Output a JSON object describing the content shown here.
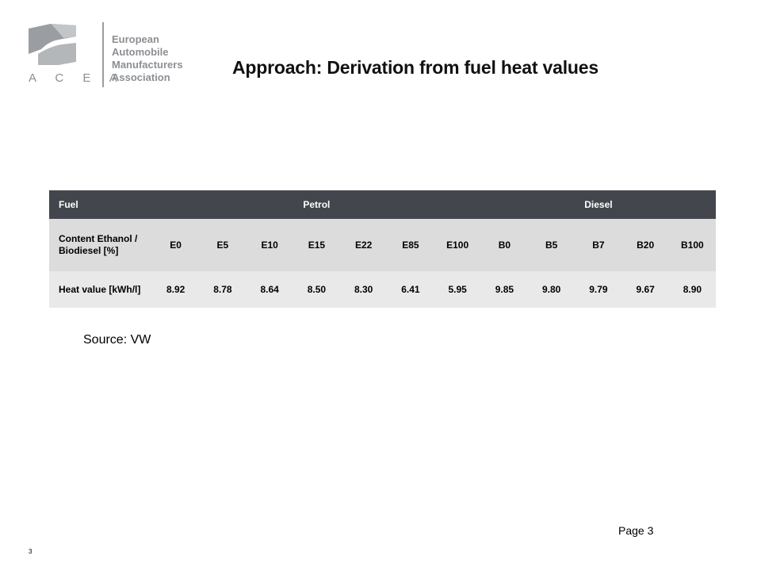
{
  "logo": {
    "acronym": "ACEA",
    "lines": [
      "European",
      "Automobile",
      "Manufacturers",
      "Association"
    ]
  },
  "title": "Approach: Derivation from fuel heat values",
  "table": {
    "header": {
      "col0": "Fuel",
      "petrol": "Petrol",
      "diesel": "Diesel"
    },
    "content_label": "Content Ethanol / Biodiesel [%]",
    "heat_label": "Heat value [kWh/l]",
    "content": [
      "E0",
      "E5",
      "E10",
      "E15",
      "E22",
      "E85",
      "E100",
      "B0",
      "B5",
      "B7",
      "B20",
      "B100"
    ],
    "heat": [
      "8.92",
      "8.78",
      "8.64",
      "8.50",
      "8.30",
      "6.41",
      "5.95",
      "9.85",
      "9.80",
      "9.79",
      "9.67",
      "8.90"
    ]
  },
  "source": "Source: VW",
  "page_label": "Page 3",
  "slide_number": "3",
  "colors": {
    "header_bg": "#43474d",
    "row1_bg": "#dcdcdc",
    "row2_bg": "#e9e9e9",
    "logo_gray": "#8c8f93"
  }
}
